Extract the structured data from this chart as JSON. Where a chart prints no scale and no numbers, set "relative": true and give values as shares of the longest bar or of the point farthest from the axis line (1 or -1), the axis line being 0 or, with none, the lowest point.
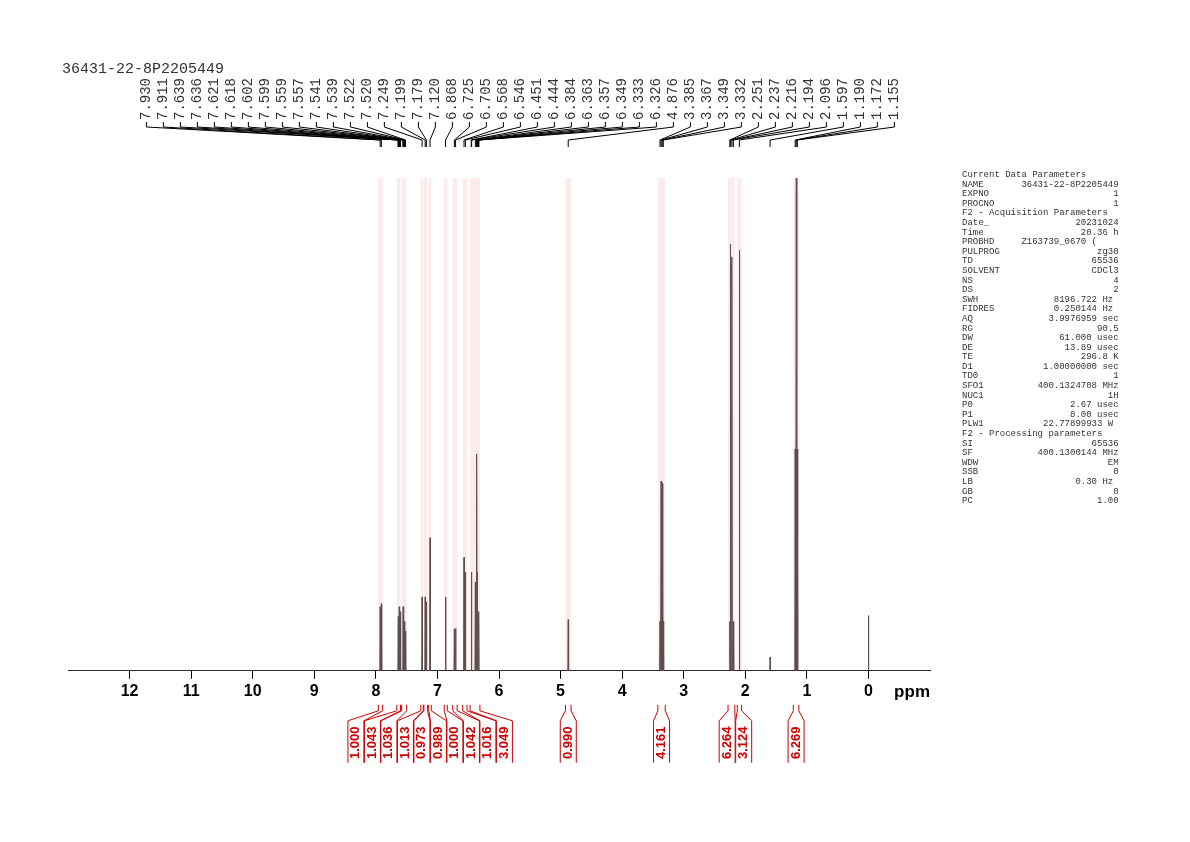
{
  "chart_data": {
    "type": "line",
    "title": "36431-22-8P2205449",
    "xlabel": "ppm",
    "relative": true,
    "xlim": [
      13,
      -1
    ],
    "xticks": [
      12,
      11,
      10,
      9,
      8,
      7,
      6,
      5,
      4,
      3,
      2,
      1,
      0
    ],
    "grid": false,
    "x": [
      13,
      7.936,
      7.93,
      7.924,
      7.917,
      7.911,
      7.905,
      7.642,
      7.636,
      7.63,
      7.626,
      7.62,
      7.614,
      7.606,
      7.6,
      7.594,
      7.563,
      7.557,
      7.551,
      7.546,
      7.54,
      7.534,
      7.527,
      7.521,
      7.515,
      7.255,
      7.249,
      7.243,
      7.205,
      7.199,
      7.193,
      7.185,
      7.179,
      7.173,
      7.126,
      7.12,
      7.114,
      6.874,
      6.868,
      6.862,
      6.731,
      6.725,
      6.719,
      6.711,
      6.705,
      6.699,
      6.574,
      6.568,
      6.562,
      6.552,
      6.546,
      6.54,
      6.454,
      6.448,
      6.442,
      6.39,
      6.384,
      6.378,
      6.369,
      6.363,
      6.357,
      6.355,
      6.349,
      6.343,
      6.336,
      6.33,
      6.324,
      4.882,
      4.876,
      4.87,
      3.391,
      3.385,
      3.379,
      3.373,
      3.367,
      3.361,
      3.355,
      3.349,
      3.343,
      3.338,
      3.332,
      3.326,
      2.257,
      2.251,
      2.245,
      2.243,
      2.237,
      2.231,
      2.222,
      2.216,
      2.21,
      2.2,
      2.194,
      2.188,
      2.102,
      2.096,
      2.09,
      1.603,
      1.597,
      1.591,
      1.196,
      1.19,
      1.184,
      1.178,
      1.172,
      1.166,
      1.161,
      1.155,
      1.149,
      0.006,
      0,
      -0.006,
      -1
    ],
    "series": [
      {
        "color": "#555555",
        "values": [
          0,
          0,
          0.13,
          0,
          0,
          0.136,
          0,
          0,
          0.11,
          0,
          0,
          0.13,
          0,
          0,
          0.12,
          0,
          0,
          0.13,
          0,
          0,
          0.1,
          0,
          0,
          0.08,
          0,
          0,
          0.15,
          0,
          0,
          0.15,
          0,
          0,
          0.14,
          0,
          0,
          0.27,
          0,
          0,
          0.15,
          0,
          0,
          0.085,
          0,
          0,
          0.086,
          0,
          0,
          0.23,
          0,
          0,
          0.2,
          0,
          0,
          0.2,
          0,
          0,
          0.18,
          0,
          0,
          0.44,
          0,
          0,
          0.2,
          0,
          0,
          0.12,
          0,
          0,
          0.104,
          0,
          0,
          0.1,
          0,
          0,
          0.385,
          0,
          0,
          0.38,
          0,
          0,
          0.1,
          0,
          0,
          0.1,
          0,
          0,
          0.866,
          0,
          0,
          0.84,
          0,
          0,
          0.1,
          0,
          0,
          0.853,
          0,
          0,
          0.028,
          0,
          0,
          0.45,
          0,
          0,
          1,
          0,
          0,
          0.45,
          0,
          0,
          0.112,
          0,
          0
        ]
      }
    ],
    "bands": [
      {
        "axis": "x",
        "from": 7.96,
        "to": 7.89,
        "label": "1.000",
        "color": "#cc0000"
      },
      {
        "axis": "x",
        "from": 7.66,
        "to": 7.6,
        "label": "1.043",
        "color": "#cc0000"
      },
      {
        "axis": "x",
        "from": 7.58,
        "to": 7.5,
        "label": "1.036",
        "color": "#cc0000"
      },
      {
        "axis": "x",
        "from": 7.27,
        "to": 7.23,
        "label": "1.013",
        "color": "#cc0000"
      },
      {
        "axis": "x",
        "from": 7.22,
        "to": 7.16,
        "label": "0.973",
        "color": "#cc0000"
      },
      {
        "axis": "x",
        "from": 7.14,
        "to": 7.1,
        "label": "0.989",
        "color": "#cc0000"
      },
      {
        "axis": "x",
        "from": 6.89,
        "to": 6.84,
        "label": "1.000",
        "color": "#cc0000"
      },
      {
        "axis": "x",
        "from": 6.75,
        "to": 6.68,
        "label": "1.042",
        "color": "#cc0000"
      },
      {
        "axis": "x",
        "from": 6.59,
        "to": 6.52,
        "label": "1.016",
        "color": "#cc0000"
      },
      {
        "axis": "x",
        "from": 6.47,
        "to": 6.31,
        "label": "3.049",
        "color": "#cc0000"
      },
      {
        "axis": "x",
        "from": 4.92,
        "to": 4.83,
        "label": "0.990",
        "color": "#cc0000"
      },
      {
        "axis": "x",
        "from": 3.42,
        "to": 3.3,
        "label": "4.161",
        "color": "#cc0000"
      },
      {
        "axis": "x",
        "from": 2.28,
        "to": 2.17,
        "label": "6.264",
        "color": "#cc0000"
      },
      {
        "axis": "x",
        "from": 2.13,
        "to": 2.06,
        "label": "3.124",
        "color": "#cc0000"
      },
      {
        "axis": "x",
        "from": 1.22,
        "to": 1.13,
        "label": "6.269",
        "color": "#cc0000"
      }
    ],
    "annotations": [
      {
        "text": "7.930",
        "x": 7.93
      },
      {
        "text": "7.911",
        "x": 7.911
      },
      {
        "text": "7.639",
        "x": 7.639
      },
      {
        "text": "7.636",
        "x": 7.636
      },
      {
        "text": "7.621",
        "x": 7.621
      },
      {
        "text": "7.618",
        "x": 7.618
      },
      {
        "text": "7.602",
        "x": 7.602
      },
      {
        "text": "7.599",
        "x": 7.599
      },
      {
        "text": "7.559",
        "x": 7.559
      },
      {
        "text": "7.557",
        "x": 7.557
      },
      {
        "text": "7.541",
        "x": 7.541
      },
      {
        "text": "7.539",
        "x": 7.539
      },
      {
        "text": "7.522",
        "x": 7.522
      },
      {
        "text": "7.520",
        "x": 7.52
      },
      {
        "text": "7.249",
        "x": 7.249
      },
      {
        "text": "7.199",
        "x": 7.199
      },
      {
        "text": "7.179",
        "x": 7.179
      },
      {
        "text": "7.120",
        "x": 7.12
      },
      {
        "text": "6.868",
        "x": 6.868
      },
      {
        "text": "6.725",
        "x": 6.725
      },
      {
        "text": "6.705",
        "x": 6.705
      },
      {
        "text": "6.568",
        "x": 6.568
      },
      {
        "text": "6.546",
        "x": 6.546
      },
      {
        "text": "6.451",
        "x": 6.451
      },
      {
        "text": "6.444",
        "x": 6.444
      },
      {
        "text": "6.384",
        "x": 6.384
      },
      {
        "text": "6.363",
        "x": 6.363
      },
      {
        "text": "6.357",
        "x": 6.357
      },
      {
        "text": "6.349",
        "x": 6.349
      },
      {
        "text": "6.333",
        "x": 6.333
      },
      {
        "text": "6.326",
        "x": 6.326
      },
      {
        "text": "4.876",
        "x": 4.876
      },
      {
        "text": "3.385",
        "x": 3.385
      },
      {
        "text": "3.367",
        "x": 3.367
      },
      {
        "text": "3.349",
        "x": 3.349
      },
      {
        "text": "3.332",
        "x": 3.332
      },
      {
        "text": "2.251",
        "x": 2.251
      },
      {
        "text": "2.237",
        "x": 2.237
      },
      {
        "text": "2.216",
        "x": 2.216
      },
      {
        "text": "2.194",
        "x": 2.194
      },
      {
        "text": "2.096",
        "x": 2.096
      },
      {
        "text": "1.597",
        "x": 1.597
      },
      {
        "text": "1.190",
        "x": 1.19
      },
      {
        "text": "1.172",
        "x": 1.172
      },
      {
        "text": "1.155",
        "x": 1.155
      },
      "Current Data Parameters",
      "NAME       36431-22-8P2205449",
      "EXPNO                       1",
      "PROCNO                      1",
      "F2 - Acquisition Parameters",
      "Date_                20231024",
      "Time                  20.36 h",
      "PROBHD     Z163739_0670 (",
      "PULPROG                  zg30",
      "TD                      65536",
      "SOLVENT                 CDCl3",
      "NS                          4",
      "DS                          2",
      "SWH              8196.722 Hz",
      "FIDRES           0.250144 Hz",
      "AQ              3.9976959 sec",
      "RG                       90.5",
      "DW                61.000 usec",
      "DE                 13.89 usec",
      "TE                    296.8 K",
      "D1             1.00000000 sec",
      "TD0                         1",
      "SFO1          400.1324708 MHz",
      "NUC1                       1H",
      "P0                  2.67 usec",
      "P1                  8.00 usec",
      "PLW1           22.77899933 W",
      "F2 - Processing parameters",
      "SI                      65536",
      "SF            400.1300144 MHz",
      "WDW                        EM",
      "SSB                         0",
      "LB                   0.30 Hz",
      "GB                          0",
      "PC                       1.00"
    ]
  }
}
